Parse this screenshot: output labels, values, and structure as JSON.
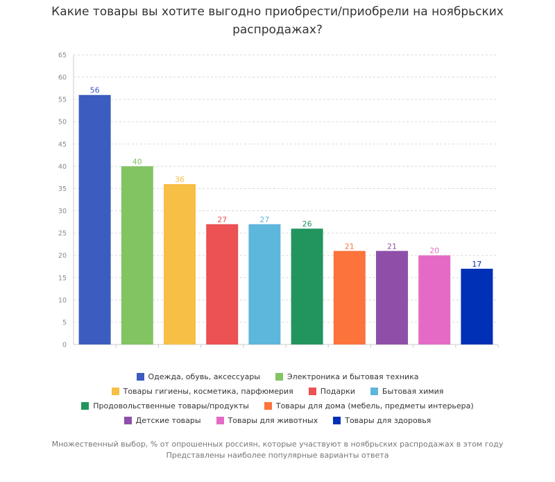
{
  "title": "Какие товары вы хотите выгодно приобрести/приобрели на ноябрьских распродажах?",
  "footnote": {
    "line1": "Множественный выбор, % от опрошенных россиян, которые участвуют в ноябрьских распродажах в этом году",
    "line2": "Представлены наиболее популярные варианты ответа"
  },
  "chart_data": {
    "type": "bar",
    "ylim": [
      0,
      65
    ],
    "yticks": [
      "0",
      "5",
      "10",
      "15",
      "20",
      "25",
      "30",
      "35",
      "40",
      "45",
      "50",
      "55",
      "60",
      "65"
    ],
    "grid": true,
    "legend_position": "bottom",
    "series": [
      {
        "name": "Одежда, обувь, аксессуары",
        "value": 56,
        "color": "#3d5cbf"
      },
      {
        "name": "Электроника и бытовая техника",
        "value": 40,
        "color": "#82c462"
      },
      {
        "name": "Товары гигиены, косметика, парфюмерия",
        "value": 36,
        "color": "#f7bf45"
      },
      {
        "name": "Подарки",
        "value": 27,
        "color": "#ec5153"
      },
      {
        "name": "Бытовая химия",
        "value": 27,
        "color": "#5db6dc"
      },
      {
        "name": "Продовольственные товары/продукты",
        "value": 26,
        "color": "#22955e"
      },
      {
        "name": "Товары для дома (мебель, предметы интерьера)",
        "value": 21,
        "color": "#fd733c"
      },
      {
        "name": "Детские товары",
        "value": 21,
        "color": "#8f4fa9"
      },
      {
        "name": "Товары для животных",
        "value": 20,
        "color": "#e46ac6"
      },
      {
        "name": "Товары для здоровья",
        "value": 17,
        "color": "#0030b5"
      }
    ]
  }
}
